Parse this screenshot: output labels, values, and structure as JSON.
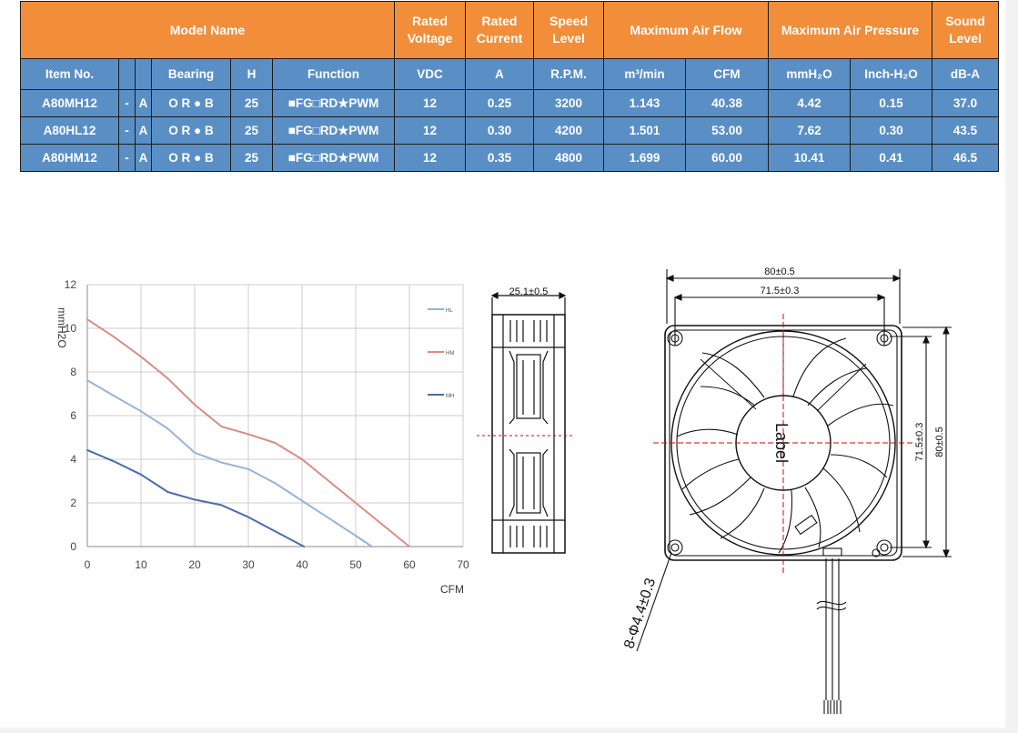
{
  "table": {
    "header_row1": {
      "model_name": "Model Name",
      "rated_voltage": "Rated Voltage",
      "rated_current": "Rated Current",
      "speed_level": "Speed Level",
      "max_air_flow": "Maximum Air Flow",
      "max_air_pressure": "Maximum Air Pressure",
      "sound_level": "Sound Level"
    },
    "header_row2": {
      "item_no": "Item No.",
      "bearing": "Bearing",
      "h": "H",
      "function": "Function",
      "vdc": "VDC",
      "a": "A",
      "rpm": "R.P.M.",
      "m3min": "m³/min",
      "cfm": "CFM",
      "mmh2o": "mmH₂O",
      "inchh2o": "Inch-H₂O",
      "dba": "dB-A"
    },
    "rows": [
      {
        "item": "A80MH12",
        "dash": "-",
        "suffix": "A",
        "bearing": "O R ● B",
        "h": "25",
        "function": "■FG□RD★PWM",
        "vdc": "12",
        "current": "0.25",
        "rpm": "3200",
        "m3min": "1.143",
        "cfm": "40.38",
        "mmh2o": "4.42",
        "inch": "0.15",
        "dba": "37.0"
      },
      {
        "item": "A80HL12",
        "dash": "-",
        "suffix": "A",
        "bearing": "O R ● B",
        "h": "25",
        "function": "■FG□RD★PWM",
        "vdc": "12",
        "current": "0.30",
        "rpm": "4200",
        "m3min": "1.501",
        "cfm": "53.00",
        "mmh2o": "7.62",
        "inch": "0.30",
        "dba": "43.5"
      },
      {
        "item": "A80HM12",
        "dash": "-",
        "suffix": "A",
        "bearing": "O R ● B",
        "h": "25",
        "function": "■FG□RD★PWM",
        "vdc": "12",
        "current": "0.35",
        "rpm": "4800",
        "m3min": "1.699",
        "cfm": "60.00",
        "mmh2o": "10.41",
        "inch": "0.41",
        "dba": "46.5"
      }
    ]
  },
  "chart_data": {
    "type": "line",
    "xlabel": "CFM",
    "ylabel": "mmH2O",
    "xlim": [
      0,
      70
    ],
    "ylim": [
      0,
      12
    ],
    "x_ticks": [
      0,
      10,
      20,
      30,
      40,
      50,
      60,
      70
    ],
    "y_ticks": [
      0,
      2,
      4,
      6,
      8,
      10,
      12
    ],
    "grid": true,
    "legend_position": "right",
    "series": [
      {
        "name": "HL",
        "color": "#97b4d8",
        "points": [
          [
            0,
            7.62
          ],
          [
            5,
            6.9
          ],
          [
            10,
            6.2
          ],
          [
            15,
            5.4
          ],
          [
            20,
            4.3
          ],
          [
            25,
            3.85
          ],
          [
            30,
            3.55
          ],
          [
            35,
            2.9
          ],
          [
            40,
            2.1
          ],
          [
            45,
            1.3
          ],
          [
            50,
            0.5
          ],
          [
            53,
            0
          ]
        ]
      },
      {
        "name": "HM",
        "color": "#d98c86",
        "points": [
          [
            0,
            10.41
          ],
          [
            5,
            9.6
          ],
          [
            10,
            8.7
          ],
          [
            15,
            7.7
          ],
          [
            20,
            6.5
          ],
          [
            25,
            5.5
          ],
          [
            30,
            5.15
          ],
          [
            35,
            4.75
          ],
          [
            40,
            4.0
          ],
          [
            45,
            3.0
          ],
          [
            50,
            2.0
          ],
          [
            55,
            1.0
          ],
          [
            60,
            0
          ]
        ]
      },
      {
        "name": "MH",
        "color": "#4a6fa8",
        "points": [
          [
            0,
            4.42
          ],
          [
            5,
            3.9
          ],
          [
            10,
            3.3
          ],
          [
            15,
            2.5
          ],
          [
            20,
            2.15
          ],
          [
            25,
            1.9
          ],
          [
            30,
            1.35
          ],
          [
            35,
            0.7
          ],
          [
            40.38,
            0
          ]
        ]
      }
    ]
  },
  "drawing": {
    "side_width_dim": "25.1±0.5",
    "overall_width_dim": "80±0.5",
    "hole_spacing_dim": "71.5±0.3",
    "hole_spacing_vertical_dim": "71.5±0.3",
    "overall_height_dim": "80±0.5",
    "hole_callout": "8-Φ4.4±0.3",
    "hub_label": "Label"
  },
  "colors": {
    "header_orange": "#f28e3a",
    "row_blue": "#5a8fc6",
    "border": "#1a1a1a",
    "grid": "#cccccc",
    "centerline_red": "#e00000"
  }
}
